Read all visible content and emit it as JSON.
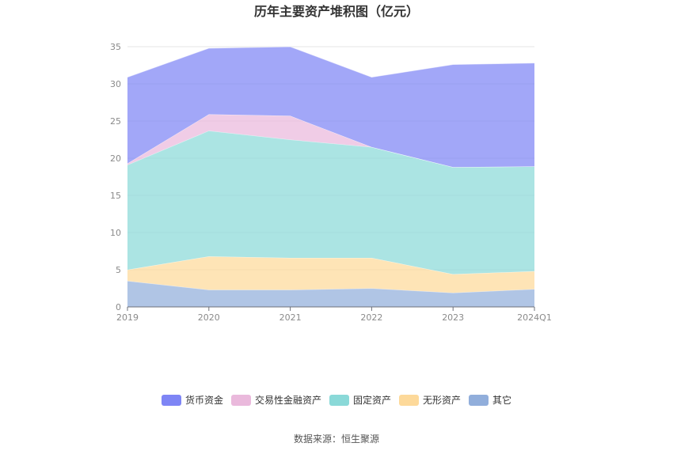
{
  "chart_data": {
    "type": "area",
    "stacked": true,
    "title": "历年主要资产堆积图（亿元）",
    "categories": [
      "2019",
      "2020",
      "2021",
      "2022",
      "2023",
      "2024Q1"
    ],
    "ylim": [
      0,
      35
    ],
    "yticks": [
      0,
      5,
      10,
      15,
      20,
      25,
      30,
      35
    ],
    "grid": true,
    "legend_position": "bottom",
    "series": [
      {
        "name": "其它",
        "color": "#91aedb",
        "values": [
          3.5,
          2.3,
          2.3,
          2.5,
          1.9,
          2.4
        ]
      },
      {
        "name": "无形资产",
        "color": "#fdd99a",
        "values": [
          1.5,
          4.5,
          4.3,
          4.1,
          2.5,
          2.4
        ]
      },
      {
        "name": "固定资产",
        "color": "#8ad9d8",
        "values": [
          14.1,
          16.9,
          15.9,
          14.9,
          14.4,
          14.1
        ]
      },
      {
        "name": "交易性金融资产",
        "color": "#eab9dc",
        "values": [
          0.2,
          2.2,
          3.2,
          0.0,
          0.0,
          0.0
        ]
      },
      {
        "name": "货币资金",
        "color": "#7e85f5",
        "values": [
          11.6,
          8.9,
          9.3,
          9.4,
          13.8,
          13.9
        ]
      }
    ],
    "legend_order": [
      "货币资金",
      "交易性金融资产",
      "固定资产",
      "无形资产",
      "其它"
    ]
  },
  "footer": {
    "source": "数据来源：恒生聚源"
  }
}
